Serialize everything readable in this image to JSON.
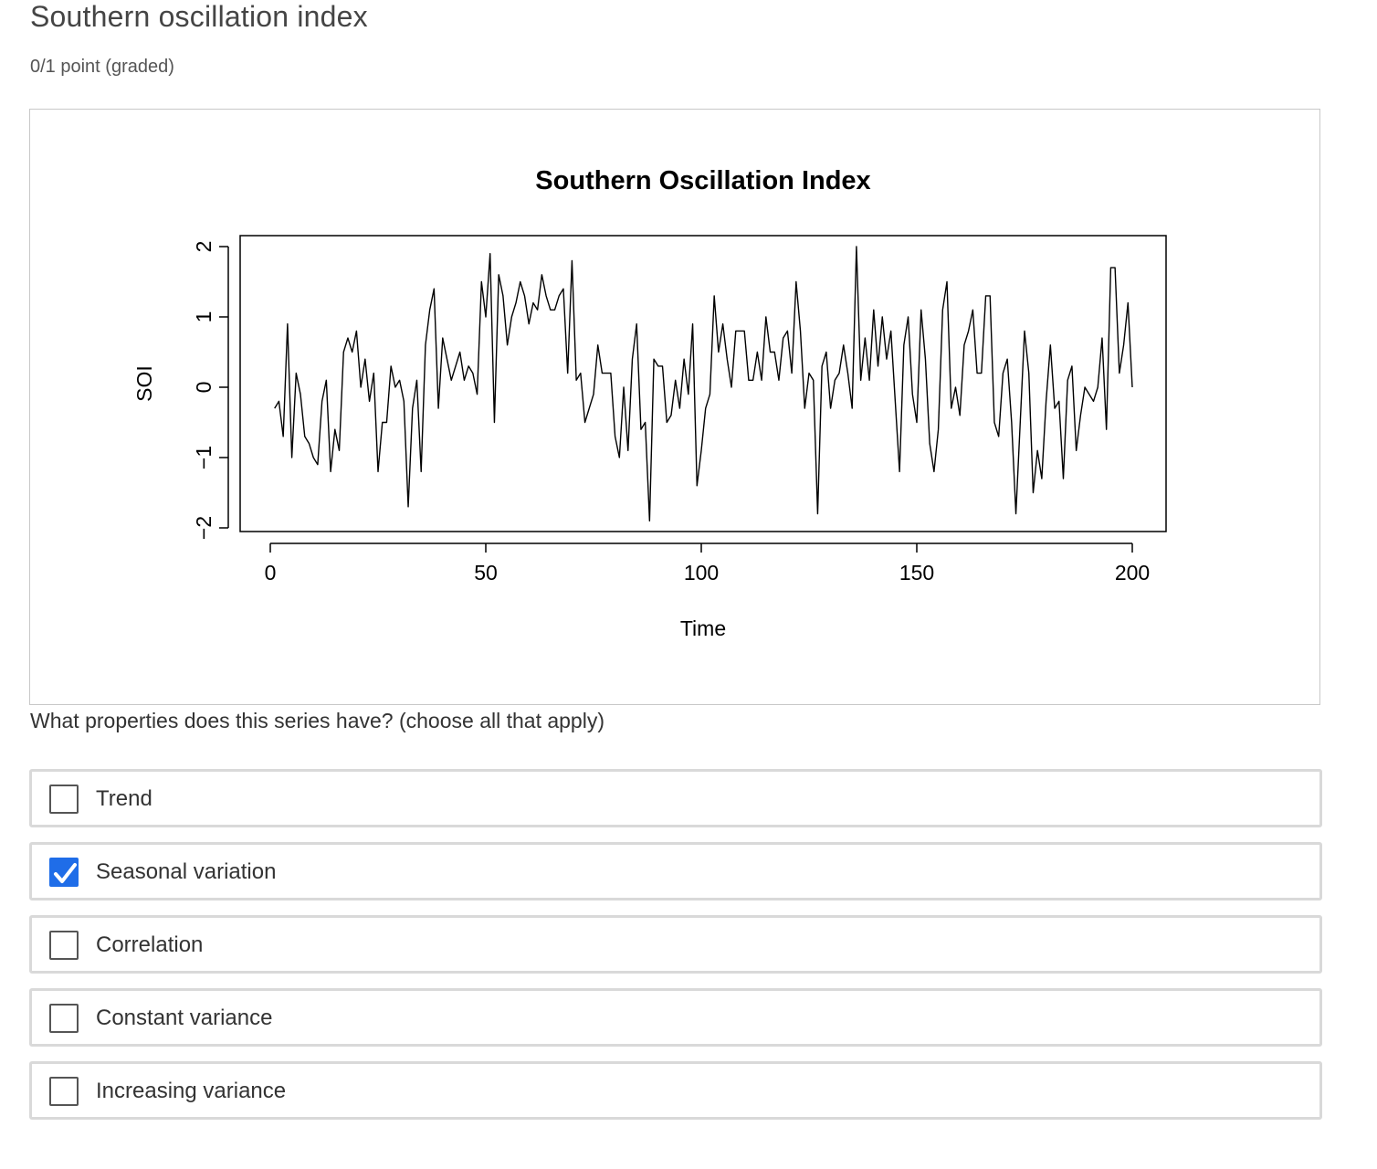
{
  "problem": {
    "title": "Southern oscillation index",
    "points": "0/1 point (graded)",
    "question": "What properties does this series have? (choose all that apply)"
  },
  "choices": [
    {
      "label": "Trend",
      "checked": false
    },
    {
      "label": "Seasonal variation",
      "checked": true
    },
    {
      "label": "Correlation",
      "checked": false
    },
    {
      "label": "Constant variance",
      "checked": false
    },
    {
      "label": "Increasing variance",
      "checked": false
    }
  ],
  "colors": {
    "checkbox_checked": "#1f6de8",
    "checkbox_border": "#555555",
    "choice_border": "#d9d9d9"
  },
  "chart_data": {
    "type": "line",
    "title": "Southern Oscillation Index",
    "xlabel": "Time",
    "ylabel": "SOI",
    "xlim": [
      0,
      200
    ],
    "ylim": [
      -2,
      2
    ],
    "x_ticks": [
      0,
      50,
      100,
      150,
      200
    ],
    "x_tick_labels": [
      "0",
      "50",
      "100",
      "150",
      "200"
    ],
    "y_ticks": [
      -2,
      -1,
      0,
      1,
      2
    ],
    "y_tick_labels": [
      "−2",
      "−1",
      "0",
      "1",
      "2"
    ],
    "grid": false,
    "x": [
      1,
      2,
      3,
      4,
      5,
      6,
      7,
      8,
      9,
      10,
      11,
      12,
      13,
      14,
      15,
      16,
      17,
      18,
      19,
      20,
      21,
      22,
      23,
      24,
      25,
      26,
      27,
      28,
      29,
      30,
      31,
      32,
      33,
      34,
      35,
      36,
      37,
      38,
      39,
      40,
      41,
      42,
      43,
      44,
      45,
      46,
      47,
      48,
      49,
      50,
      51,
      52,
      53,
      54,
      55,
      56,
      57,
      58,
      59,
      60,
      61,
      62,
      63,
      64,
      65,
      66,
      67,
      68,
      69,
      70,
      71,
      72,
      73,
      74,
      75,
      76,
      77,
      78,
      79,
      80,
      81,
      82,
      83,
      84,
      85,
      86,
      87,
      88,
      89,
      90,
      91,
      92,
      93,
      94,
      95,
      96,
      97,
      98,
      99,
      100,
      101,
      102,
      103,
      104,
      105,
      106,
      107,
      108,
      109,
      110,
      111,
      112,
      113,
      114,
      115,
      116,
      117,
      118,
      119,
      120,
      121,
      122,
      123,
      124,
      125,
      126,
      127,
      128,
      129,
      130,
      131,
      132,
      133,
      134,
      135,
      136,
      137,
      138,
      139,
      140,
      141,
      142,
      143,
      144,
      145,
      146,
      147,
      148,
      149,
      150,
      151,
      152,
      153,
      154,
      155,
      156,
      157,
      158,
      159,
      160,
      161,
      162,
      163,
      164,
      165,
      166,
      167,
      168,
      169,
      170,
      171,
      172,
      173,
      174,
      175,
      176,
      177,
      178,
      179,
      180,
      181,
      182,
      183,
      184,
      185,
      186,
      187,
      188,
      189,
      190,
      191,
      192,
      193,
      194,
      195,
      196,
      197,
      198,
      199,
      200
    ],
    "values": [
      -0.3,
      -0.2,
      -0.7,
      0.9,
      -1.0,
      0.2,
      -0.1,
      -0.7,
      -0.8,
      -1.0,
      -1.1,
      -0.2,
      0.1,
      -1.2,
      -0.6,
      -0.9,
      0.5,
      0.7,
      0.5,
      0.8,
      0.0,
      0.4,
      -0.2,
      0.2,
      -1.2,
      -0.5,
      -0.5,
      0.3,
      0.0,
      0.1,
      -0.2,
      -1.7,
      -0.3,
      0.1,
      -1.2,
      0.6,
      1.1,
      1.4,
      -0.3,
      0.7,
      0.4,
      0.1,
      0.3,
      0.5,
      0.1,
      0.3,
      0.2,
      -0.1,
      1.5,
      1.0,
      1.9,
      -0.5,
      1.6,
      1.3,
      0.6,
      1.0,
      1.2,
      1.5,
      1.3,
      0.9,
      1.2,
      1.1,
      1.6,
      1.3,
      1.1,
      1.1,
      1.3,
      1.4,
      0.2,
      1.8,
      0.1,
      0.2,
      -0.5,
      -0.3,
      -0.1,
      0.6,
      0.2,
      0.2,
      0.2,
      -0.7,
      -1.0,
      0.0,
      -0.9,
      0.4,
      0.9,
      -0.6,
      -0.5,
      -1.9,
      0.4,
      0.3,
      0.3,
      -0.5,
      -0.4,
      0.1,
      -0.3,
      0.4,
      -0.1,
      0.9,
      -1.4,
      -0.9,
      -0.3,
      -0.1,
      1.3,
      0.5,
      0.9,
      0.4,
      0.0,
      0.8,
      0.8,
      0.8,
      0.1,
      0.1,
      0.5,
      0.1,
      1.0,
      0.5,
      0.5,
      0.1,
      0.7,
      0.8,
      0.2,
      1.5,
      0.8,
      -0.3,
      0.2,
      0.1,
      -1.8,
      0.3,
      0.5,
      -0.3,
      0.1,
      0.2,
      0.6,
      0.2,
      -0.3,
      2.0,
      0.1,
      0.7,
      0.1,
      1.1,
      0.3,
      1.0,
      0.4,
      0.8,
      -0.2,
      -1.2,
      0.6,
      1.0,
      -0.1,
      -0.5,
      1.1,
      0.4,
      -0.8,
      -1.2,
      -0.6,
      1.1,
      1.5,
      -0.3,
      0.0,
      -0.4,
      0.6,
      0.8,
      1.1,
      0.2,
      0.2,
      1.3,
      1.3,
      -0.5,
      -0.7,
      0.2,
      0.4,
      -0.5,
      -1.8,
      -0.5,
      0.8,
      0.2,
      -1.5,
      -0.9,
      -1.3,
      -0.2,
      0.6,
      -0.3,
      -0.2,
      -1.3,
      0.1,
      0.3,
      -0.9,
      -0.4,
      0.0,
      -0.1,
      -0.2,
      0.0,
      0.7,
      -0.6,
      1.7,
      1.7,
      0.2,
      0.6,
      1.2,
      0.0
    ]
  }
}
